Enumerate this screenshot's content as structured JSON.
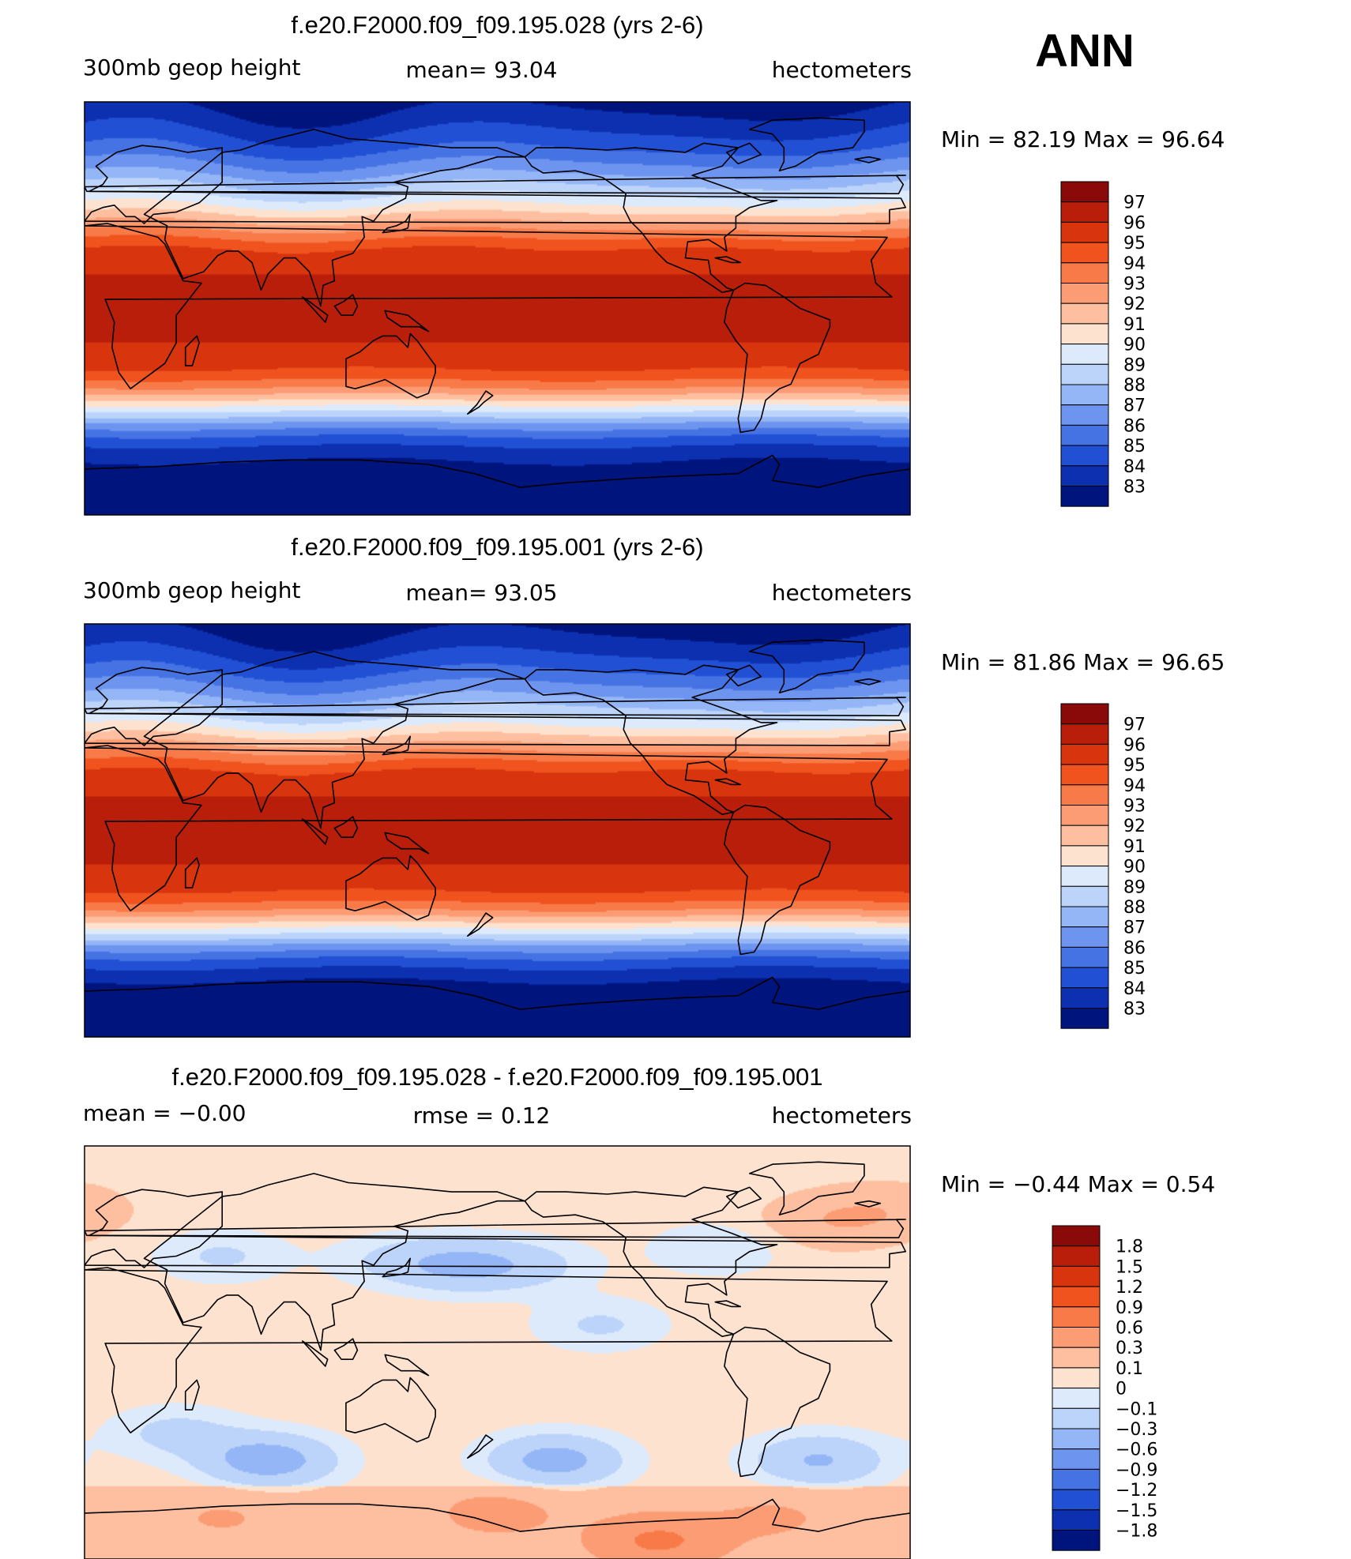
{
  "season_label": "ANN",
  "chart_data": [
    {
      "type": "heatmap",
      "title": "f.e20.F2000.f09_f09.195.028 (yrs 2-6)",
      "left_label": "300mb geop height",
      "center_label": "mean=   93.04",
      "right_label": "hectometers",
      "minmax_label": "Min =   82.19  Max =   96.64",
      "field": "zonal-band",
      "latitude_profile": {
        "lat": [
          90,
          80,
          70,
          60,
          50,
          45,
          40,
          35,
          30,
          25,
          20,
          10,
          0,
          -10,
          -20,
          -25,
          -30,
          -35,
          -40,
          -45,
          -50,
          -55,
          -60,
          -65,
          -70,
          -80,
          -90
        ],
        "value": [
          82.6,
          83.6,
          84.8,
          86.6,
          88.8,
          90.0,
          91.4,
          92.8,
          94.1,
          95.2,
          95.8,
          96.2,
          96.3,
          96.2,
          95.8,
          95.3,
          94.3,
          92.9,
          91.0,
          89.0,
          86.9,
          85.2,
          84.0,
          83.2,
          82.6,
          82.3,
          82.2
        ]
      },
      "colorbar": {
        "labels": [
          "97",
          "96",
          "95",
          "94",
          "93",
          "92",
          "91",
          "90",
          "89",
          "88",
          "87",
          "86",
          "85",
          "84",
          "83"
        ],
        "colors": [
          "#8a0a0a",
          "#b81e0a",
          "#d8340e",
          "#f0531e",
          "#f87a48",
          "#fb9c74",
          "#fdbfa0",
          "#fde3cf",
          "#ddeafc",
          "#bcd4fa",
          "#94b6f6",
          "#6d94ee",
          "#4673e4",
          "#2150d4",
          "#0d30b0",
          "#00147e"
        ]
      }
    },
    {
      "type": "heatmap",
      "title": "f.e20.F2000.f09_f09.195.001 (yrs 2-6)",
      "left_label": "300mb geop height",
      "center_label": "mean=   93.05",
      "right_label": "hectometers",
      "minmax_label": "Min =   81.86  Max =   96.65",
      "field": "zonal-band",
      "latitude_profile": {
        "lat": [
          90,
          80,
          70,
          60,
          50,
          45,
          40,
          35,
          30,
          25,
          20,
          10,
          0,
          -10,
          -20,
          -25,
          -30,
          -35,
          -40,
          -45,
          -50,
          -55,
          -60,
          -65,
          -70,
          -80,
          -90
        ],
        "value": [
          82.5,
          83.5,
          84.8,
          86.6,
          88.8,
          90.0,
          91.4,
          92.8,
          94.1,
          95.2,
          95.8,
          96.2,
          96.3,
          96.2,
          95.8,
          95.3,
          94.3,
          92.9,
          91.0,
          89.0,
          86.9,
          85.2,
          84.0,
          83.1,
          82.4,
          82.0,
          81.9
        ]
      },
      "colorbar": {
        "labels": [
          "97",
          "96",
          "95",
          "94",
          "93",
          "92",
          "91",
          "90",
          "89",
          "88",
          "87",
          "86",
          "85",
          "84",
          "83"
        ],
        "colors": [
          "#8a0a0a",
          "#b81e0a",
          "#d8340e",
          "#f0531e",
          "#f87a48",
          "#fb9c74",
          "#fdbfa0",
          "#fde3cf",
          "#ddeafc",
          "#bcd4fa",
          "#94b6f6",
          "#6d94ee",
          "#4673e4",
          "#2150d4",
          "#0d30b0",
          "#00147e"
        ]
      }
    },
    {
      "type": "heatmap",
      "title": "f.e20.F2000.f09_f09.195.028 - f.e20.F2000.f09_f09.195.001",
      "left_label": "mean =    −0.00",
      "center_label": "rmse =     0.12",
      "right_label": "hectometers",
      "minmax_label": "Min =   −0.44  Max =     0.54",
      "field": "anomaly",
      "anomaly_background": 0.05,
      "anomaly_features": [
        {
          "lon": -10,
          "lat": 62,
          "value": 0.22
        },
        {
          "lon": 60,
          "lat": 42,
          "value": -0.12
        },
        {
          "lon": 135,
          "lat": 40,
          "value": -0.1
        },
        {
          "lon": 165,
          "lat": 38,
          "value": -0.3
        },
        {
          "lon": 195,
          "lat": 38,
          "value": -0.12
        },
        {
          "lon": 225,
          "lat": 12,
          "value": -0.12
        },
        {
          "lon": 325,
          "lat": 57,
          "value": 0.25
        },
        {
          "lon": 275,
          "lat": 45,
          "value": -0.1
        },
        {
          "lon": 40,
          "lat": -35,
          "value": -0.15
        },
        {
          "lon": 80,
          "lat": -47,
          "value": -0.44
        },
        {
          "lon": 205,
          "lat": -47,
          "value": -0.4
        },
        {
          "lon": 320,
          "lat": -47,
          "value": -0.32
        },
        {
          "lon": 180,
          "lat": -70,
          "value": 0.28
        },
        {
          "lon": 300,
          "lat": -72,
          "value": 0.22
        },
        {
          "lon": 60,
          "lat": -72,
          "value": 0.2
        },
        {
          "lon": 250,
          "lat": -82,
          "value": 0.54
        },
        {
          "lon": 30,
          "lat": 0,
          "value": 0.03
        }
      ],
      "colorbar": {
        "labels": [
          "1.8",
          "1.5",
          "1.2",
          "0.9",
          "0.6",
          "0.3",
          "0.1",
          "0",
          "−0.1",
          "−0.3",
          "−0.6",
          "−0.9",
          "−1.2",
          "−1.5",
          "−1.8"
        ],
        "colors": [
          "#8a0a0a",
          "#b81e0a",
          "#d8340e",
          "#f0531e",
          "#f87a48",
          "#fb9c74",
          "#fdbfa0",
          "#fde3cf",
          "#ddeafc",
          "#bcd4fa",
          "#94b6f6",
          "#6d94ee",
          "#4673e4",
          "#2150d4",
          "#0d30b0",
          "#00147e"
        ],
        "levels": [
          1.8,
          1.5,
          1.2,
          0.9,
          0.6,
          0.3,
          0.1,
          0,
          -0.1,
          -0.3,
          -0.6,
          -0.9,
          -1.2,
          -1.5,
          -1.8
        ]
      }
    }
  ]
}
